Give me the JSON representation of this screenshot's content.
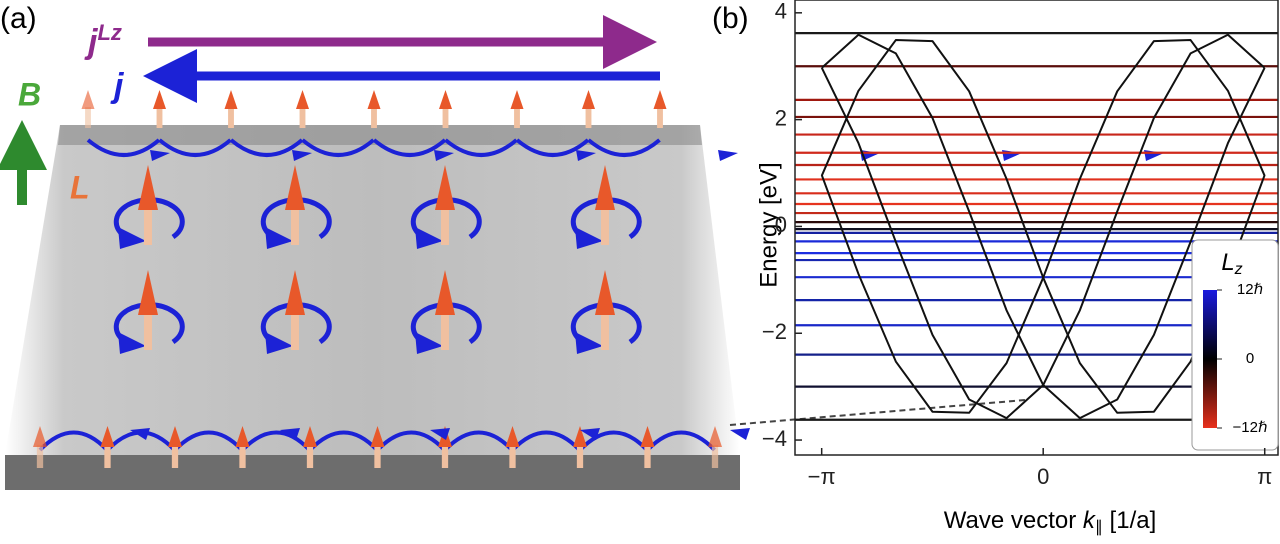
{
  "panel_labels": [
    "(a)",
    "(b)"
  ],
  "diagram": {
    "j_lz": {
      "main": "j",
      "sup": "Lz"
    },
    "j": "j",
    "b_field": "B",
    "orbital": "L"
  },
  "chart_data": {
    "type": "line",
    "xlabel": {
      "pre": "Wave vector ",
      "var": "k",
      "sub": "∥",
      "post": " [1/a]"
    },
    "ylabel": "Energy [eV]",
    "xlim": [
      -3.52,
      3.33
    ],
    "ylim": [
      -4.28,
      4.24
    ],
    "xticks": [
      {
        "value": -3.1416,
        "label": "−π"
      },
      0,
      {
        "value": 3.1416,
        "label": "π"
      }
    ],
    "yticks": [
      {
        "value": -4,
        "label": "−4"
      },
      {
        "value": -2,
        "label": "−2"
      },
      0,
      2,
      4
    ],
    "x": [
      -3.14,
      -2.62,
      -2.09,
      -1.57,
      -1.05,
      -0.52,
      0,
      0.52,
      1.05,
      1.57,
      2.09,
      2.62,
      3.14
    ],
    "series": [
      {
        "color": "#111111",
        "values": [
          2.97,
          3.59,
          3.24,
          2.03,
          0.28,
          -1.57,
          -2.97,
          -3.59,
          -3.24,
          -2.03,
          -0.29,
          1.56,
          2.97
        ]
      },
      {
        "color": "#111111",
        "values": [
          2.97,
          1.56,
          -0.29,
          -2.03,
          -3.24,
          -3.59,
          -2.97,
          -1.57,
          0.28,
          2.03,
          3.24,
          3.59,
          2.97
        ]
      },
      {
        "color": "#111111",
        "values": [
          0.95,
          2.54,
          3.49,
          3.47,
          2.53,
          0.89,
          -0.96,
          -2.56,
          -3.49,
          -3.47,
          -2.53,
          -0.89,
          0.96
        ]
      },
      {
        "color": "#111111",
        "values": [
          0.96,
          -0.89,
          -2.53,
          -3.47,
          -3.49,
          -2.56,
          -0.96,
          0.89,
          2.53,
          3.47,
          3.49,
          2.54,
          0.95
        ]
      }
    ],
    "levels": [
      {
        "value": 3.62,
        "color": "#1a1a1a"
      },
      {
        "value": 3.0,
        "color": "#5a0d0a"
      },
      {
        "value": 2.37,
        "color": "#a0180f"
      },
      {
        "value": 2.05,
        "color": "#7a120c"
      },
      {
        "value": 1.72,
        "color": "#c8261a"
      },
      {
        "value": 1.38,
        "color": "#d02a1c"
      },
      {
        "value": 1.15,
        "color": "#b82318"
      },
      {
        "value": 0.88,
        "color": "#e0301e"
      },
      {
        "value": 0.62,
        "color": "#d82d1c"
      },
      {
        "value": 0.42,
        "color": "#e6341f"
      },
      {
        "value": 0.25,
        "color": "#c42a1a"
      },
      {
        "value": 0.08,
        "color": "#2a0a0a"
      },
      {
        "value": -0.05,
        "color": "#101020"
      },
      {
        "value": -0.12,
        "color": "#1420a0"
      },
      {
        "value": -0.28,
        "color": "#1a2ad8"
      },
      {
        "value": -0.5,
        "color": "#1c2ee0"
      },
      {
        "value": -0.63,
        "color": "#1626b0"
      },
      {
        "value": -0.95,
        "color": "#1a2ad0"
      },
      {
        "value": -1.38,
        "color": "#1424a8"
      },
      {
        "value": -1.85,
        "color": "#1a28c8"
      },
      {
        "value": -2.4,
        "color": "#14208a"
      },
      {
        "value": -3.0,
        "color": "#101030"
      },
      {
        "value": -3.62,
        "color": "#1a1a1a"
      }
    ],
    "colorbar": {
      "title": {
        "main": "L",
        "sub": "z"
      },
      "lim": [
        -12,
        12
      ],
      "ticks": [
        {
          "value": 12,
          "label": "12ℏ"
        },
        0,
        {
          "value": -12,
          "label": "−12ℏ"
        }
      ],
      "colors": [
        "#e8301c",
        "#000000",
        "#1a1adf"
      ]
    }
  }
}
